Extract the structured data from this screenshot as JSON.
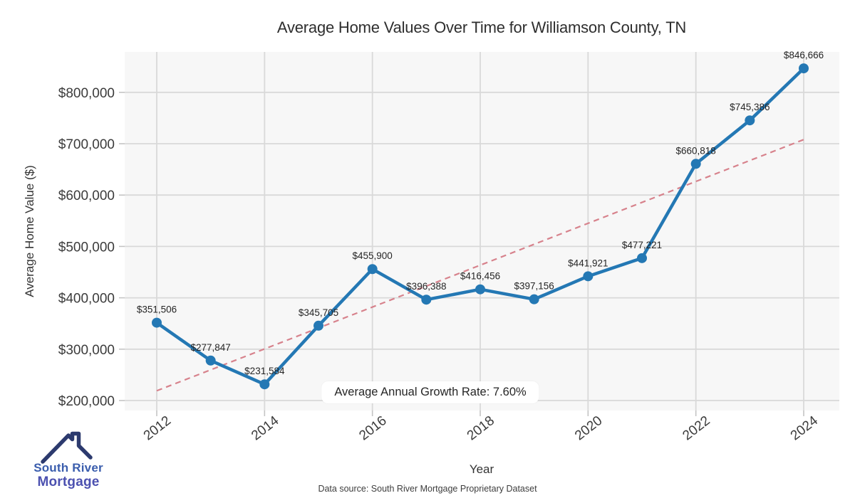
{
  "title": "Average Home Values Over Time for Williamson County, TN",
  "chart_data": {
    "type": "line",
    "title": "Average Home Values Over Time for Williamson County, TN",
    "xlabel": "Year",
    "ylabel": "Average Home Value ($)",
    "x": [
      2012,
      2013,
      2014,
      2015,
      2016,
      2017,
      2018,
      2019,
      2020,
      2021,
      2022,
      2023,
      2024
    ],
    "series": [
      {
        "name": "Average Home Value",
        "values": [
          351506,
          277847,
          231584,
          345705,
          455900,
          396388,
          416456,
          397156,
          441921,
          477221,
          660818,
          745386,
          846666
        ],
        "point_labels": [
          "$351,506",
          "$277,847",
          "$231,584",
          "$345,705",
          "$455,900",
          "$396,388",
          "$416,456",
          "$397,156",
          "$441,921",
          "$477,221",
          "$660,818",
          "$745,386",
          "$846,666"
        ],
        "color": "#2478b4",
        "marker": "circle",
        "line_width": 4.5
      },
      {
        "name": "Trend",
        "style": "dashed",
        "color": "#d7828c",
        "x_endpoints": [
          2012,
          2024
        ],
        "value_endpoints": [
          219000,
          708000
        ],
        "line_width": 2.2
      }
    ],
    "xticks": {
      "values": [
        2012,
        2014,
        2016,
        2018,
        2020,
        2022,
        2024
      ],
      "labels": [
        "2012",
        "2014",
        "2016",
        "2018",
        "2020",
        "2022",
        "2024"
      ]
    },
    "yticks": {
      "values": [
        200000,
        300000,
        400000,
        500000,
        600000,
        700000,
        800000
      ],
      "labels": [
        "$200,000",
        "$300,000",
        "$400,000",
        "$500,000",
        "$600,000",
        "$700,000",
        "$800,000"
      ]
    },
    "xlim": [
      2011.4,
      2024.66
    ],
    "ylim": [
      179000,
      878000
    ],
    "grid": true,
    "legend": false,
    "plot_bg": "#f7f7f7",
    "grid_color": "#d9d9d9",
    "tick_color": "#c4c4c4",
    "label_color": "#262626",
    "annotation": "Average Annual Growth Rate: 7.60%"
  },
  "annotation": {
    "text": "Average Annual Growth Rate: 7.60%"
  },
  "footer": {
    "source": "Data source: South River Mortgage Proprietary Dataset"
  },
  "logo": {
    "line1": "South River",
    "line2": "Mortgage",
    "house_color": "#2c3a6e"
  }
}
